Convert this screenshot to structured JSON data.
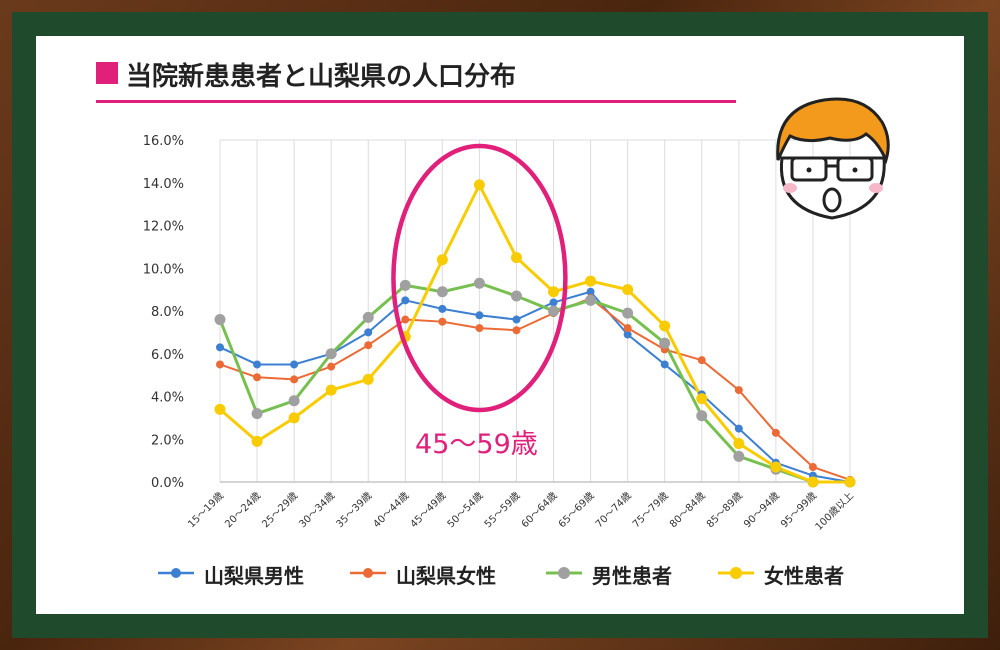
{
  "title": "当院新患患者と山梨県の人口分布",
  "annotation": "45～59歳",
  "colors": {
    "accent": "#e0207a",
    "yamanashi_male": "#3d7fd1",
    "yamanashi_female": "#ec6a36",
    "patients_male": "#77c050",
    "patients_female": "#f8cc00",
    "patients_male_marker": "#a0a0a0"
  },
  "chart_data": {
    "type": "line",
    "title": "当院新患患者と山梨県の人口分布",
    "xlabel": "",
    "ylabel": "",
    "ylim": [
      0,
      16
    ],
    "y_ticks": [
      "0.0%",
      "2.0%",
      "4.0%",
      "6.0%",
      "8.0%",
      "10.0%",
      "12.0%",
      "14.0%",
      "16.0%"
    ],
    "grid": "vertical",
    "legend_position": "bottom",
    "categories": [
      "15～19歳",
      "20～24歳",
      "25～29歳",
      "30～34歳",
      "35～39歳",
      "40～44歳",
      "45～49歳",
      "50～54歳",
      "55～59歳",
      "60～64歳",
      "65～69歳",
      "70～74歳",
      "75～79歳",
      "80～84歳",
      "85～89歳",
      "90～94歳",
      "95～99歳",
      "100歳以上"
    ],
    "series": [
      {
        "name": "山梨県男性",
        "values": [
          6.3,
          5.5,
          5.5,
          6.0,
          7.0,
          8.5,
          8.1,
          7.8,
          7.6,
          8.4,
          8.9,
          6.9,
          5.5,
          4.1,
          2.5,
          0.9,
          0.3,
          0.0
        ]
      },
      {
        "name": "山梨県女性",
        "values": [
          5.5,
          4.9,
          4.8,
          5.4,
          6.4,
          7.6,
          7.5,
          7.2,
          7.1,
          7.9,
          8.6,
          7.2,
          6.2,
          5.7,
          4.3,
          2.3,
          0.7,
          0.1
        ]
      },
      {
        "name": "男性患者",
        "values": [
          7.6,
          3.2,
          3.8,
          6.0,
          7.7,
          9.2,
          8.9,
          9.3,
          8.7,
          8.0,
          8.5,
          7.9,
          6.5,
          3.1,
          1.2,
          0.6,
          0.0,
          0.0
        ]
      },
      {
        "name": "女性患者",
        "values": [
          3.4,
          1.9,
          3.0,
          4.3,
          4.8,
          6.8,
          10.4,
          13.9,
          10.5,
          8.9,
          9.4,
          9.0,
          7.3,
          3.9,
          1.8,
          0.7,
          0.0,
          0.0
        ]
      }
    ]
  }
}
